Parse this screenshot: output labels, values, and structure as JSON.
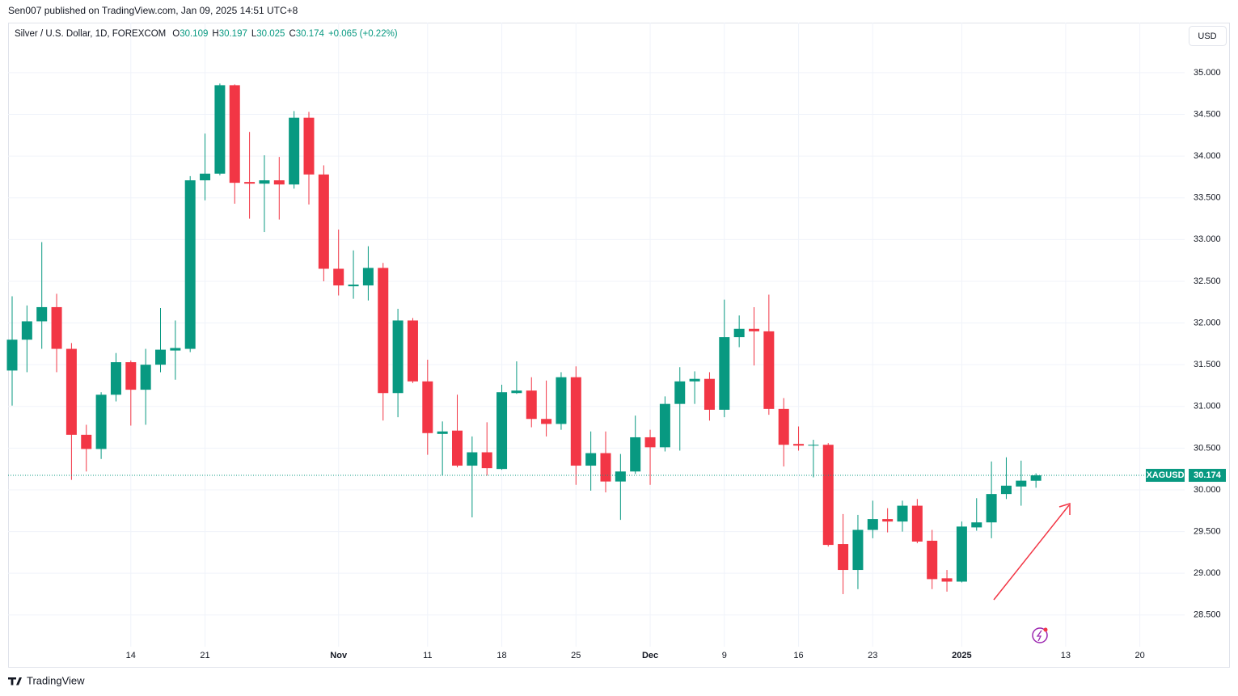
{
  "header": {
    "published": "Sen007 published on TradingView.com, Jan 09, 2025 14:51 UTC+8",
    "currency": "USD",
    "brand": "TradingView"
  },
  "chart_data": {
    "type": "candlestick",
    "title": "Silver / U.S. Dollar, 1D, FOREXCOM",
    "ohlc_labels": [
      "O",
      "H",
      "L",
      "C"
    ],
    "change": "+0.065 (+0.22%)",
    "symbol": "XAGUSD",
    "categories": [
      null,
      null,
      null,
      null,
      null,
      null,
      null,
      null,
      "14",
      null,
      null,
      null,
      null,
      "21",
      null,
      null,
      null,
      null,
      null,
      null,
      null,
      null,
      "Nov",
      null,
      null,
      null,
      null,
      null,
      "11",
      null,
      null,
      null,
      null,
      "18",
      null,
      null,
      null,
      null,
      "25",
      null,
      null,
      null,
      null,
      "Dec",
      null,
      null,
      null,
      null,
      "9",
      null,
      null,
      null,
      null,
      "16",
      null,
      null,
      null,
      null,
      "23",
      null,
      null,
      null,
      null,
      null,
      "2025",
      null,
      null,
      null,
      null,
      null,
      null,
      "13",
      null,
      null,
      null,
      null,
      "20"
    ],
    "open": [
      31.43,
      31.8,
      32.02,
      32.19,
      31.69,
      30.66,
      30.49,
      31.14,
      31.53,
      31.2,
      31.5,
      31.67,
      31.69,
      33.71,
      33.79,
      34.85,
      33.69,
      33.67,
      33.71,
      33.66,
      34.46,
      33.78,
      32.65,
      32.44,
      32.45,
      32.66,
      31.16,
      32.03,
      31.3,
      30.67,
      30.71,
      30.29,
      30.45,
      30.25,
      31.16,
      31.19,
      30.85,
      30.79,
      31.35,
      30.29,
      30.44,
      30.1,
      30.22,
      30.63,
      30.51,
      31.03,
      31.3,
      31.33,
      30.96,
      31.83,
      31.93,
      31.9,
      30.97,
      30.55,
      30.53,
      30.54,
      29.35,
      29.04,
      29.52,
      29.65,
      29.62,
      29.81,
      29.39,
      28.94,
      28.9,
      29.55,
      29.61,
      29.95,
      30.04,
      30.109,
      null,
      null,
      null,
      null,
      null,
      null,
      null
    ],
    "high": [
      32.32,
      32.21,
      32.97,
      32.35,
      31.76,
      30.78,
      31.17,
      31.64,
      31.55,
      31.69,
      32.18,
      32.03,
      33.76,
      34.27,
      34.87,
      34.86,
      34.29,
      34.01,
      33.99,
      34.54,
      34.53,
      33.89,
      33.12,
      32.87,
      32.92,
      32.72,
      32.17,
      32.06,
      31.56,
      30.82,
      31.14,
      30.64,
      30.81,
      31.26,
      31.54,
      31.35,
      31.31,
      31.41,
      31.48,
      30.7,
      30.7,
      30.43,
      30.89,
      30.72,
      31.12,
      31.47,
      31.42,
      31.41,
      32.28,
      32.09,
      32.19,
      32.34,
      31.1,
      30.76,
      30.6,
      30.56,
      29.71,
      29.7,
      29.87,
      29.78,
      29.87,
      29.89,
      29.52,
      29.04,
      29.62,
      29.9,
      30.34,
      30.39,
      30.35,
      30.197,
      null,
      null,
      null,
      null,
      null,
      null,
      null
    ],
    "low": [
      31.01,
      31.41,
      31.69,
      31.41,
      30.12,
      30.22,
      30.37,
      31.06,
      30.77,
      30.78,
      31.41,
      31.32,
      31.65,
      33.47,
      33.77,
      33.43,
      33.25,
      33.09,
      33.24,
      33.61,
      33.42,
      32.5,
      32.33,
      32.29,
      32.27,
      30.83,
      30.87,
      31.28,
      30.42,
      30.17,
      30.27,
      29.67,
      30.17,
      30.24,
      31.15,
      30.75,
      30.64,
      30.72,
      30.06,
      29.99,
      29.97,
      29.64,
      30.19,
      30.06,
      30.46,
      30.47,
      31.03,
      30.83,
      30.87,
      31.71,
      31.49,
      30.9,
      30.28,
      30.47,
      30.15,
      29.32,
      28.75,
      28.81,
      29.42,
      29.49,
      29.5,
      29.36,
      28.81,
      28.78,
      28.89,
      29.51,
      29.42,
      29.89,
      29.81,
      30.025,
      null,
      null,
      null,
      null,
      null,
      null,
      null
    ],
    "close": [
      31.8,
      32.02,
      32.19,
      31.69,
      30.66,
      30.49,
      31.14,
      31.53,
      31.2,
      31.5,
      31.68,
      31.7,
      33.71,
      33.79,
      34.85,
      33.68,
      33.67,
      33.71,
      33.66,
      34.46,
      33.78,
      32.65,
      32.45,
      32.46,
      32.66,
      31.16,
      32.03,
      31.3,
      30.68,
      30.7,
      30.29,
      30.45,
      30.26,
      31.17,
      31.19,
      30.85,
      30.79,
      31.35,
      30.29,
      30.44,
      30.1,
      30.22,
      30.63,
      30.51,
      31.03,
      31.3,
      31.33,
      30.96,
      31.83,
      31.93,
      31.9,
      30.97,
      30.54,
      30.53,
      30.54,
      29.34,
      29.04,
      29.52,
      29.65,
      29.62,
      29.81,
      29.38,
      28.93,
      28.9,
      29.56,
      29.61,
      29.95,
      30.05,
      30.11,
      30.174,
      null,
      null,
      null,
      null,
      null,
      null,
      null
    ],
    "up_color": "#089981",
    "down_color": "#f23645",
    "ylim": [
      28.12,
      35.6
    ],
    "yticks": [
      {
        "value": 28.5,
        "label": "28.500"
      },
      {
        "value": 29,
        "label": "29.000"
      },
      {
        "value": 29.5,
        "label": "29.500"
      },
      {
        "value": 30,
        "label": "30.000"
      },
      {
        "value": 30.5,
        "label": "30.500"
      },
      {
        "value": 31,
        "label": "31.000"
      },
      {
        "value": 31.5,
        "label": "31.500"
      },
      {
        "value": 32,
        "label": "32.000"
      },
      {
        "value": 32.5,
        "label": "32.500"
      },
      {
        "value": 33,
        "label": "33.000"
      },
      {
        "value": 33.5,
        "label": "33.500"
      },
      {
        "value": 34,
        "label": "34.000"
      },
      {
        "value": 34.5,
        "label": "34.500"
      },
      {
        "value": 35,
        "label": "35.000"
      }
    ],
    "grid": true
  }
}
